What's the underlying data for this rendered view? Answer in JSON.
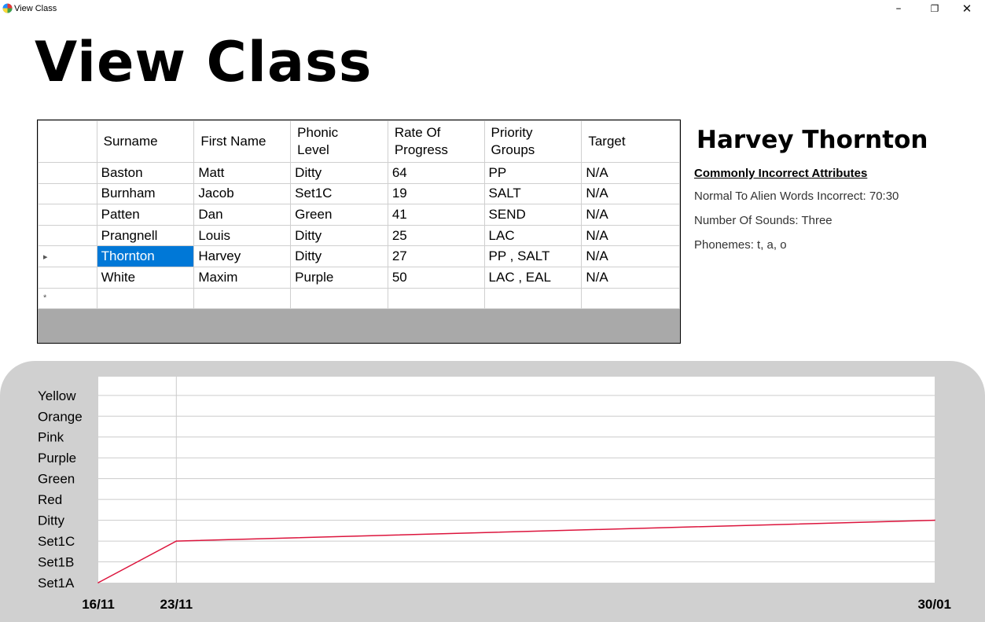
{
  "window": {
    "title": "View Class",
    "minimize_glyph": "–",
    "maximize_glyph": "❐",
    "close_glyph": "✕"
  },
  "page": {
    "title": "View Class"
  },
  "grid": {
    "columns": [
      "Surname",
      "First Name",
      "Phonic\nLevel",
      "Rate Of\nProgress",
      "Priority\nGroups",
      "Target"
    ],
    "rows": [
      {
        "marker": "",
        "cells": [
          "Baston",
          "Matt",
          "Ditty",
          "64",
          "PP",
          "N/A"
        ]
      },
      {
        "marker": "",
        "cells": [
          "Burnham",
          "Jacob",
          "Set1C",
          "19",
          "SALT",
          "N/A"
        ]
      },
      {
        "marker": "",
        "cells": [
          "Patten",
          "Dan",
          "Green",
          "41",
          "SEND",
          "N/A"
        ]
      },
      {
        "marker": "",
        "cells": [
          "Prangnell",
          "Louis",
          "Ditty",
          "25",
          "LAC",
          "N/A"
        ]
      },
      {
        "marker": "▸",
        "cells": [
          "Thornton",
          "Harvey",
          "Ditty",
          "27",
          "PP , SALT",
          "N/A"
        ],
        "selected_col": 0
      },
      {
        "marker": "",
        "cells": [
          "White",
          "Maxim",
          "Purple",
          "50",
          "LAC , EAL",
          "N/A"
        ]
      }
    ],
    "new_row_marker": "*",
    "selection_color": "#0078d7"
  },
  "detail": {
    "name": "Harvey Thornton",
    "heading": "Commonly Incorrect Attributes",
    "lines": [
      "Normal To Alien Words Incorrect: 70:30",
      "Number Of Sounds: Three",
      "Phonemes: t, a, o"
    ]
  },
  "chart_data": {
    "type": "line",
    "title": "",
    "xlabel": "",
    "ylabel": "",
    "y_categories": [
      "Set1A",
      "Set1B",
      "Set1C",
      "Ditty",
      "Red",
      "Green",
      "Purple",
      "Pink",
      "Orange",
      "Yellow"
    ],
    "x_tick_labels": [
      "16/11",
      "23/11",
      "30/01"
    ],
    "x_range_days": {
      "start": "16/11",
      "end": "30/01"
    },
    "series": [
      {
        "color": "#dc143c",
        "points": [
          {
            "x": "16/11",
            "y": 0
          },
          {
            "x": "23/11",
            "y": 2
          },
          {
            "x": "30/01",
            "y": 3
          }
        ]
      }
    ],
    "grid": true,
    "grid_color": "#cccccc",
    "plot_background": "#ffffff",
    "panel_background": "#d0d0d0"
  }
}
